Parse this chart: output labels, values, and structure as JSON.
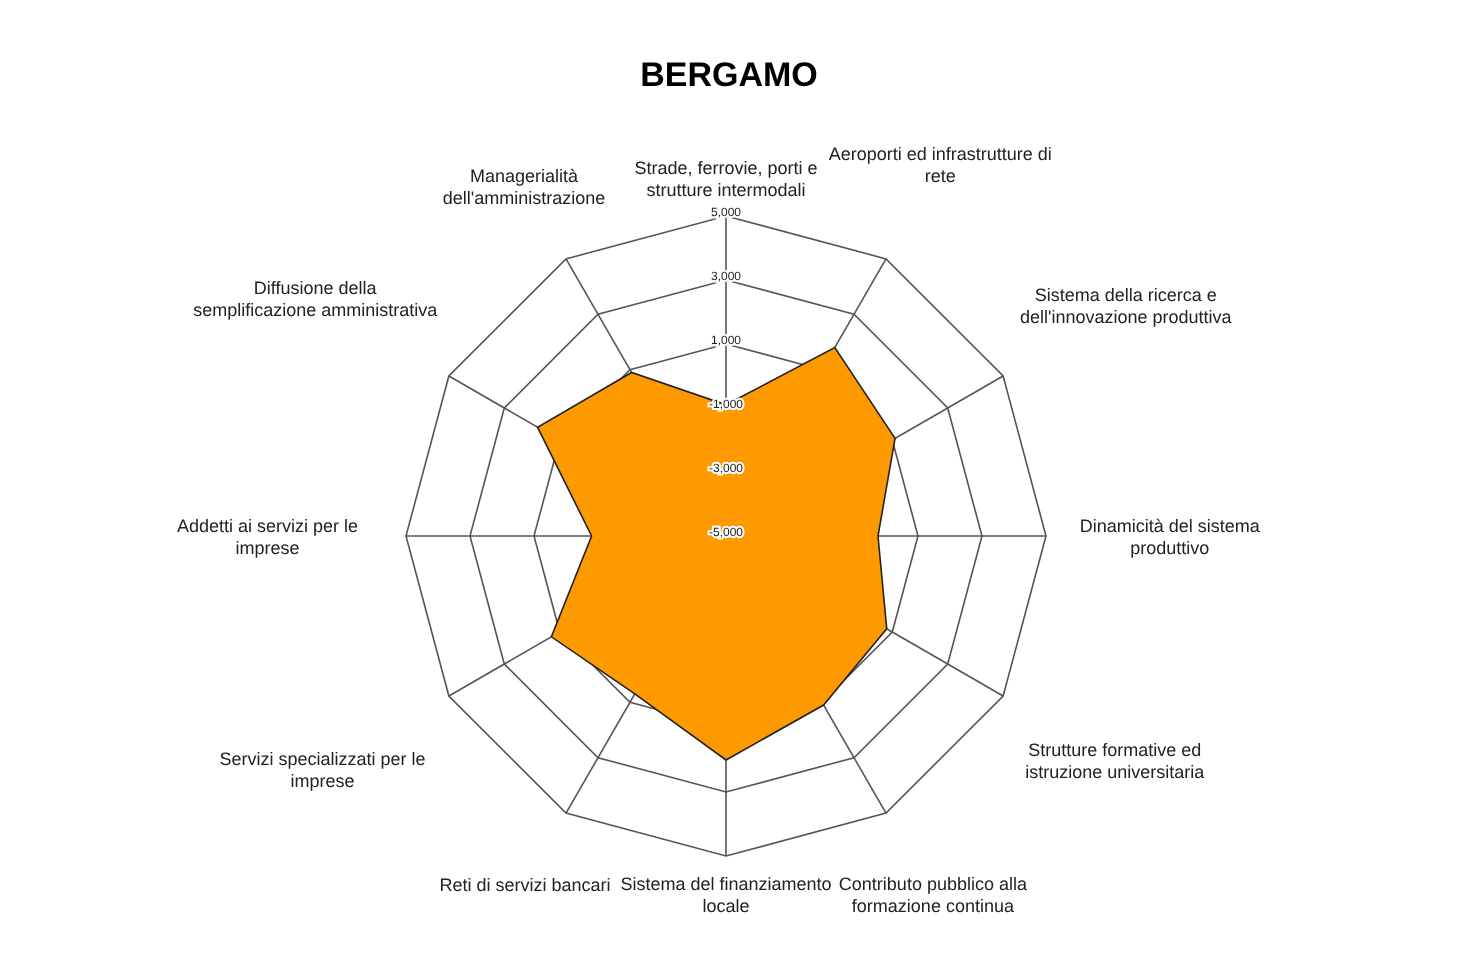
{
  "chart_data": {
    "type": "radar",
    "title": "BERGAMO",
    "categories": [
      "Strade, ferrovie, porti e strutture intermodali",
      "Aeroporti ed infrastrutture di rete",
      "Sistema della ricerca e dell'innovazione produttiva",
      "Dinamicità del sistema produttivo",
      "Strutture formative ed istruzione universitaria",
      "Contributo pubblico alla formazione continua",
      "Sistema del finanziamento locale",
      "Reti di servizi bancari",
      "Servizi specializzati per le imprese",
      "Addetti ai servizi per le imprese",
      "Diffusione della semplificazione amministrativa",
      "Managerialità dell'amministrazione"
    ],
    "series": [
      {
        "color": "#ff9900",
        "values": [
          -900,
          1800,
          1100,
          -250,
          800,
          1100,
          2000,
          700,
          1300,
          -800,
          1800,
          900
        ]
      }
    ],
    "ylim": [
      -5000,
      5000
    ],
    "yticks": [
      {
        "value": -5000,
        "label": "-5,000"
      },
      {
        "value": -3000,
        "label": "-3,000"
      },
      {
        "value": -1000,
        "label": "-1,000"
      },
      {
        "value": 1000,
        "label": "1,000"
      },
      {
        "value": 3000,
        "label": "3,000"
      },
      {
        "value": 5000,
        "label": "5,000"
      }
    ],
    "grid": true
  }
}
